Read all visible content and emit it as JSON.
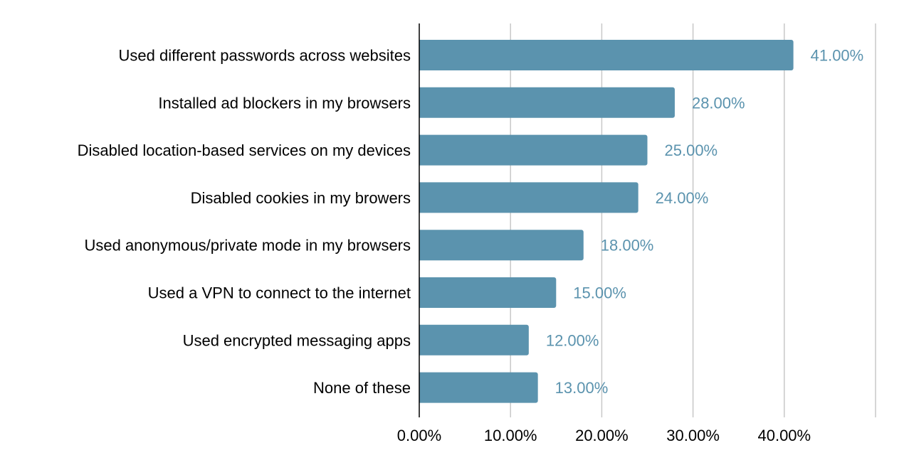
{
  "chart_data": {
    "type": "bar",
    "orientation": "horizontal",
    "categories": [
      "Used different passwords across websites",
      "Installed ad blockers in my browsers",
      "Disabled location-based services on my devices",
      "Disabled cookies in my browers",
      "Used anonymous/private mode in my browsers",
      "Used a VPN to connect to the internet",
      "Used encrypted messaging apps",
      "None of these"
    ],
    "values": [
      41,
      28,
      25,
      24,
      18,
      15,
      12,
      13
    ],
    "data_labels": [
      "41.00%",
      "28.00%",
      "25.00%",
      "24.00%",
      "18.00%",
      "15.00%",
      "12.00%",
      "13.00%"
    ],
    "xlim": [
      0,
      50
    ],
    "x_ticks": [
      0,
      10,
      20,
      30,
      40,
      50
    ],
    "x_tick_labels": [
      "0.00%",
      "10.00%",
      "20.00%",
      "30.00%",
      "40.00%",
      ""
    ],
    "title": "",
    "xlabel": "",
    "ylabel": "",
    "grid": true,
    "legend": false,
    "colors": {
      "bar": "#5b93ae",
      "data_label": "#5b93ae",
      "grid": "#c8c8c8",
      "axis": "#000000"
    }
  }
}
